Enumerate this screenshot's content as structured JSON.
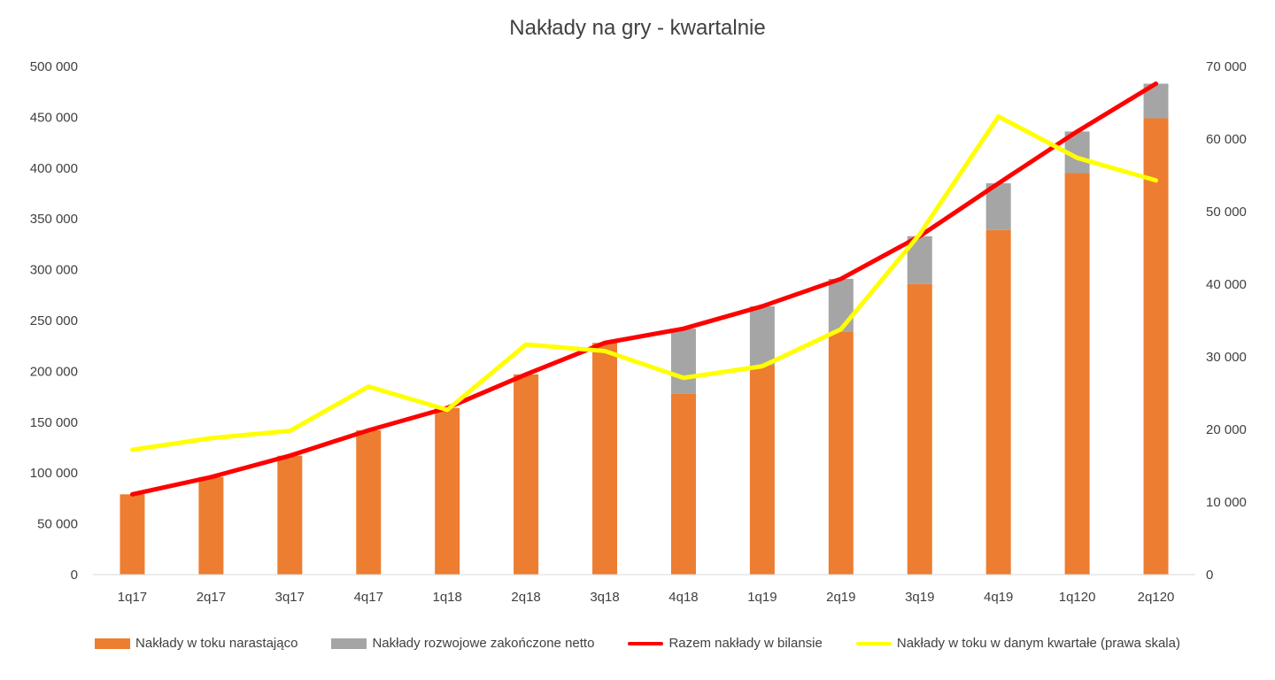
{
  "chart_data": {
    "type": "bar",
    "title": "Nakłady na gry - kwartalnie",
    "categories": [
      "1q17",
      "2q17",
      "3q17",
      "4q17",
      "1q18",
      "2q18",
      "3q18",
      "4q18",
      "1q19",
      "2q19",
      "3q19",
      "4q19",
      "1q120",
      "2q120"
    ],
    "stacked": true,
    "y_left": {
      "min": 0,
      "max": 500000,
      "ticks": [
        "0",
        "50 000",
        "100 000",
        "150 000",
        "200 000",
        "250 000",
        "300 000",
        "350 000",
        "400 000",
        "450 000",
        "500 000"
      ]
    },
    "y_right": {
      "min": 0,
      "max": 70000,
      "ticks": [
        "0",
        "10 000",
        "20 000",
        "30 000",
        "40 000",
        "50 000",
        "60 000",
        "70 000"
      ]
    },
    "grid": false,
    "legend_position": "bottom",
    "series": [
      {
        "name": "Nakłady w toku narastająco",
        "type": "bar",
        "axis": "left",
        "color": "#ED7D31",
        "values": [
          79000,
          96000,
          117000,
          142000,
          164000,
          197000,
          228000,
          178000,
          206000,
          239000,
          286000,
          339000,
          395000,
          449000
        ]
      },
      {
        "name": "Nakłady rozwojowe zakończone netto",
        "type": "bar",
        "axis": "left",
        "color": "#A5A5A5",
        "values": [
          0,
          0,
          0,
          0,
          0,
          0,
          0,
          64000,
          58000,
          52000,
          47000,
          46000,
          41000,
          34000
        ]
      },
      {
        "name": "Razem nakłady w bilansie",
        "type": "line",
        "axis": "left",
        "color": "#FF0000",
        "values": [
          79000,
          96000,
          117000,
          142000,
          164000,
          197000,
          228000,
          242000,
          264000,
          291000,
          333000,
          385000,
          436000,
          483000
        ]
      },
      {
        "name": "Nakłady w toku w danym kwartałe (prawa skala)",
        "type": "line",
        "axis": "right",
        "color": "#FFFF00",
        "values": [
          17200,
          18800,
          19800,
          25900,
          22700,
          31700,
          30800,
          27100,
          28700,
          33800,
          46900,
          63100,
          57400,
          54300
        ]
      }
    ]
  }
}
